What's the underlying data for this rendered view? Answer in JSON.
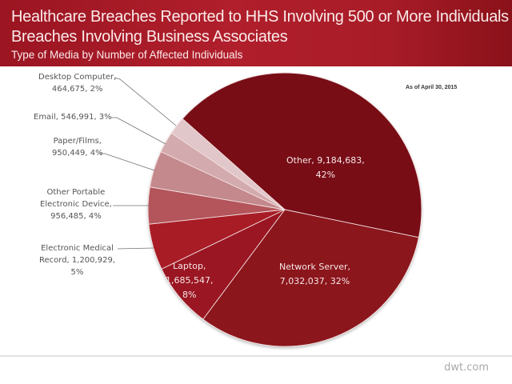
{
  "header": {
    "title_line1": "Healthcare Breaches Reported to HHS Involving 500 or More Individuals",
    "title_line2": "Breaches Involving Business Associates",
    "subtitle": "Type of Media by Number  of Affected Individuals"
  },
  "annotation": "As of April 30, 2015",
  "footer": "dwt.com",
  "colors": {
    "header_bg": "#a81c28",
    "Other": "#781118",
    "Network Server": "#8b141d",
    "Laptop": "#9a1922",
    "Electronic Medical Record": "#a81e26",
    "Other Portable Electronic Device": "#b3545a",
    "Paper/Films": "#c4898d",
    "Email": "#d3aaad",
    "Desktop Computer": "#e1c7c9"
  },
  "labels": {
    "other": [
      "Other, 9,184,683,",
      "42%"
    ],
    "network": [
      "Network Server,",
      "7,032,037, 32%"
    ],
    "laptop": [
      "Laptop,",
      "1,685,547,",
      "8%"
    ],
    "emr": [
      "Electronic Medical",
      "Record,  1,200,929,",
      "5%"
    ],
    "oped": [
      "Other Portable",
      "Electronic Device,",
      "956,485, 4%"
    ],
    "paper": [
      "Paper/Films,",
      "950,449, 4%"
    ],
    "email": [
      "Email, 546,991, 3%"
    ],
    "desktop": [
      "Desktop Computer,",
      "464,675, 2%"
    ]
  },
  "chart_data": {
    "type": "pie",
    "title": "Healthcare Breaches Reported to HHS Involving 500 or More Individuals — Breaches Involving Business Associates",
    "subtitle": "Type of Media by Number of Affected Individuals",
    "annotation": "As of April 30, 2015",
    "categories": [
      "Other",
      "Network Server",
      "Laptop",
      "Electronic Medical Record",
      "Other Portable Electronic Device",
      "Paper/Films",
      "Email",
      "Desktop Computer"
    ],
    "values": [
      9184683,
      7032037,
      1685547,
      1200929,
      956485,
      950449,
      546991,
      464675
    ],
    "percent_labels": [
      "42%",
      "32%",
      "8%",
      "5%",
      "4%",
      "4%",
      "3%",
      "2%"
    ],
    "start_angle_deg": 311.6,
    "direction": "clockwise",
    "center": [
      356,
      262
    ],
    "radius": 171
  }
}
